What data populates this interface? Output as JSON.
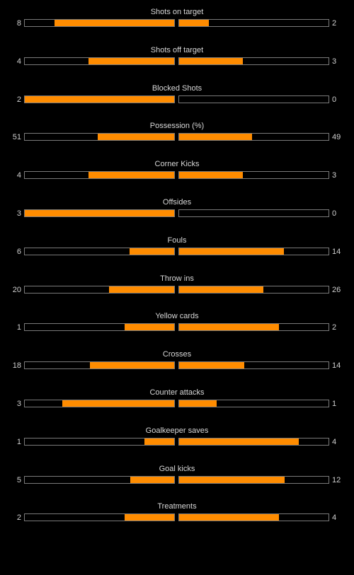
{
  "colors": {
    "background": "#000000",
    "bar_fill": "#ff8c00",
    "bar_border": "#7a7a7a",
    "text": "#d8d8d8"
  },
  "stats": [
    {
      "label": "Shots on target",
      "home": "8",
      "away": "2"
    },
    {
      "label": "Shots off target",
      "home": "4",
      "away": "3"
    },
    {
      "label": "Blocked Shots",
      "home": "2",
      "away": "0"
    },
    {
      "label": "Possession (%)",
      "home": "51",
      "away": "49"
    },
    {
      "label": "Corner Kicks",
      "home": "4",
      "away": "3"
    },
    {
      "label": "Offsides",
      "home": "3",
      "away": "0"
    },
    {
      "label": "Fouls",
      "home": "6",
      "away": "14"
    },
    {
      "label": "Throw ins",
      "home": "20",
      "away": "26"
    },
    {
      "label": "Yellow cards",
      "home": "1",
      "away": "2"
    },
    {
      "label": "Crosses",
      "home": "18",
      "away": "14"
    },
    {
      "label": "Counter attacks",
      "home": "3",
      "away": "1"
    },
    {
      "label": "Goalkeeper saves",
      "home": "1",
      "away": "4"
    },
    {
      "label": "Goal kicks",
      "home": "5",
      "away": "12"
    },
    {
      "label": "Treatments",
      "home": "2",
      "away": "4"
    }
  ]
}
